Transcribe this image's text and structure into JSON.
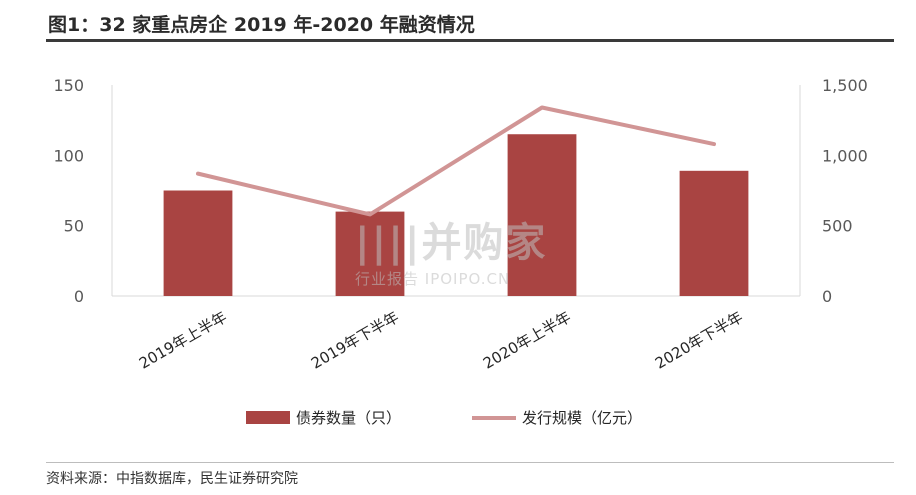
{
  "title": "图1：32 家重点房企 2019 年-2020 年融资情况",
  "source": "资料来源：中指数据库，民生证券研究院",
  "watermark": {
    "main": "||||并购家",
    "sub": "行业报告 IPOIPO.CN"
  },
  "colors": {
    "bar": "#a94442",
    "line": "#d19595",
    "axis": "#d9d9d9"
  },
  "chart_data": {
    "type": "bar",
    "categories": [
      "2019年上半年",
      "2019年下半年",
      "2020年上半年",
      "2020年下半年"
    ],
    "series": [
      {
        "name": "债券数量（只）",
        "type": "bar",
        "axis": "left",
        "values": [
          75,
          60,
          115,
          89
        ]
      },
      {
        "name": "发行规模（亿元）",
        "type": "line",
        "axis": "right",
        "values": [
          870,
          580,
          1340,
          1080
        ]
      }
    ],
    "y_left": {
      "range": [
        0,
        150
      ],
      "ticks": [
        "0",
        "50",
        "100",
        "150"
      ]
    },
    "y_right": {
      "range": [
        0,
        1500
      ],
      "ticks": [
        "0",
        "500",
        "1,000",
        "1,500"
      ]
    },
    "grid": false,
    "legend": "bottom"
  }
}
